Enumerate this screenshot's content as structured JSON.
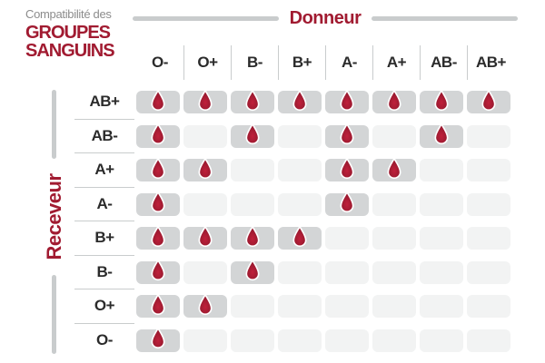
{
  "title": {
    "small": "Compatibilité des",
    "line1": "GROUPES",
    "line2": "SANGUINS"
  },
  "labels": {
    "donor": "Donneur",
    "receiver": "Receveur"
  },
  "colors": {
    "accent_red": "#a11b31",
    "drop_red_light": "#c0203b",
    "drop_red_dark": "#8e1629",
    "cell_filled": "#d3d5d6",
    "cell_empty": "#f2f3f3",
    "divider_gray": "#c9cccd",
    "subtitle_gray": "#8c8c8c",
    "header_text": "#2b2b2b"
  },
  "icons": {
    "compatible_marker": "blood-drop-icon"
  },
  "chart_data": {
    "type": "heatmap",
    "title": "Compatibilité des GROUPES SANGUINS",
    "x_title": "Donneur",
    "y_title": "Receveur",
    "columns": [
      "O-",
      "O+",
      "B-",
      "B+",
      "A-",
      "A+",
      "AB-",
      "AB+"
    ],
    "rows": [
      "AB+",
      "AB-",
      "A+",
      "A-",
      "B+",
      "B-",
      "O+",
      "O-"
    ],
    "values": [
      [
        1,
        1,
        1,
        1,
        1,
        1,
        1,
        1
      ],
      [
        1,
        0,
        1,
        0,
        1,
        0,
        1,
        0
      ],
      [
        1,
        1,
        0,
        0,
        1,
        1,
        0,
        0
      ],
      [
        1,
        0,
        0,
        0,
        1,
        0,
        0,
        0
      ],
      [
        1,
        1,
        1,
        1,
        0,
        0,
        0,
        0
      ],
      [
        1,
        0,
        1,
        0,
        0,
        0,
        0,
        0
      ],
      [
        1,
        1,
        0,
        0,
        0,
        0,
        0,
        0
      ],
      [
        1,
        0,
        0,
        0,
        0,
        0,
        0,
        0
      ]
    ],
    "marker": "blood-drop",
    "legend_position": "none",
    "grid": false
  }
}
